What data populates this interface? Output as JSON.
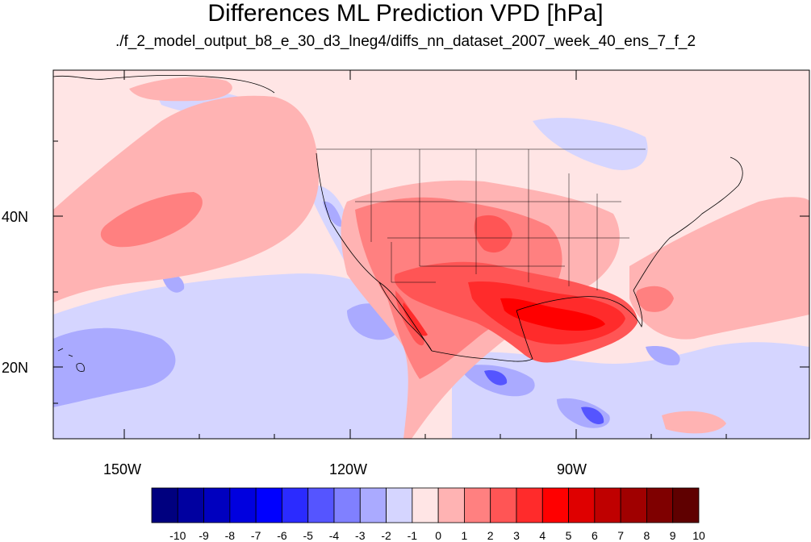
{
  "title": "Differences ML Prediction VPD [hPa]",
  "subtitle": "./f_2_model_output_b8_e_30_d3_lneg4/diffs_nn_dataset_2007_week_40_ens_7_f_2",
  "x_axis_labels": [
    "150W",
    "120W",
    "90W"
  ],
  "y_axis_labels": [
    "40N",
    "20N"
  ],
  "colorbar": {
    "levels": [
      "-10",
      "-9",
      "-8",
      "-7",
      "-6",
      "-5",
      "-4",
      "-3",
      "-2",
      "-1",
      "0",
      "1",
      "2",
      "3",
      "4",
      "5",
      "6",
      "7",
      "8",
      "9",
      "10"
    ],
    "colors": [
      "#00007f",
      "#0000a0",
      "#0000bf",
      "#0000df",
      "#0000ff",
      "#2b2bff",
      "#5555ff",
      "#8080ff",
      "#aaaaff",
      "#d5d5ff",
      "#ffe5e5",
      "#ffb3b3",
      "#ff8080",
      "#ff5555",
      "#ff2b2b",
      "#ff0000",
      "#df0000",
      "#bf0000",
      "#a00000",
      "#7f0000",
      "#5f0000"
    ]
  },
  "map": {
    "background_color": "#ffe5e5",
    "field_classes": [
      "negative weak (-2 to -1)",
      "negative moderate (-3 to -2)",
      "positive weak (1 to 2)",
      "positive moderate (2 to 3)",
      "positive strong (3 to 5)",
      "positive very strong (5 to 7)"
    ]
  }
}
